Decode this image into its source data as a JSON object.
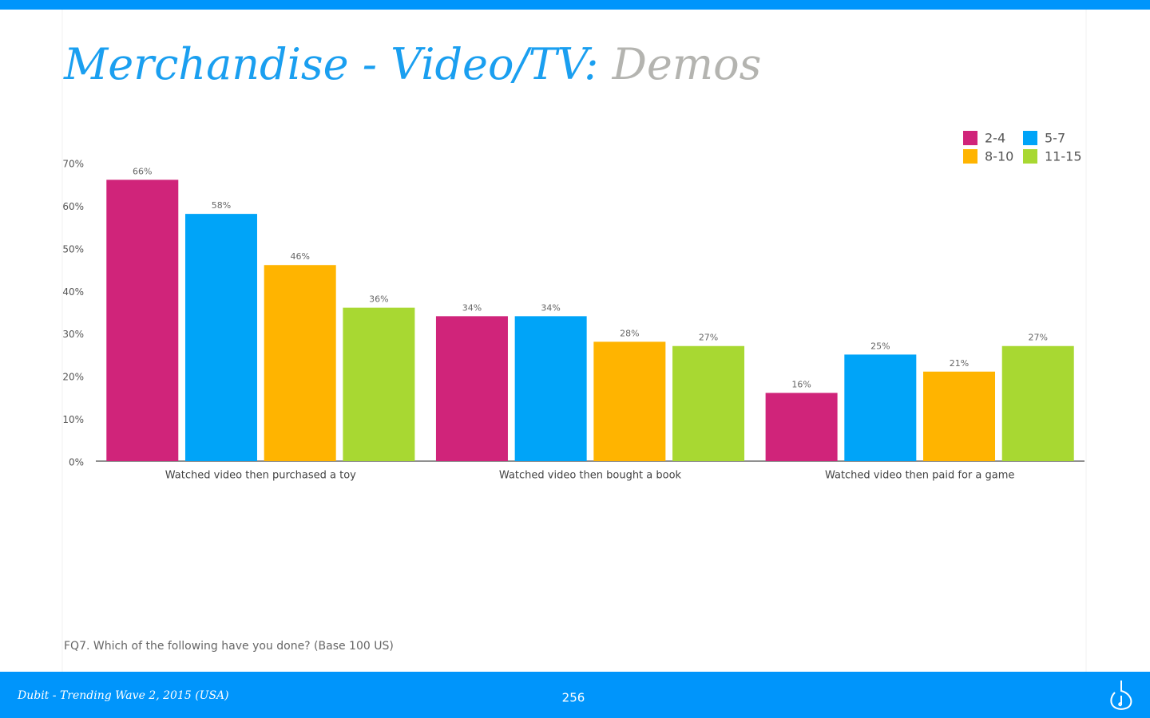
{
  "header": {
    "title": "Merchandise - Video/TV:",
    "subtitle": "Demos"
  },
  "chart_data": {
    "type": "bar",
    "categories": [
      "Watched video then purchased a toy",
      "Watched video then bought a book",
      "Watched video then paid for a game"
    ],
    "series": [
      {
        "name": "2-4",
        "color": "#d0247a",
        "values": [
          66,
          34,
          16
        ],
        "value_labels": [
          "66%",
          "34%",
          "16%"
        ]
      },
      {
        "name": "5-7",
        "color": "#00a4f8",
        "values": [
          58,
          34,
          25
        ],
        "value_labels": [
          "58%",
          "34%",
          "25%"
        ]
      },
      {
        "name": "8-10",
        "color": "#ffb400",
        "values": [
          46,
          28,
          21
        ],
        "value_labels": [
          "46%",
          "28%",
          "21%"
        ]
      },
      {
        "name": "11-15",
        "color": "#a8d832",
        "values": [
          36,
          27,
          27
        ],
        "value_labels": [
          "36%",
          "27%",
          "27%"
        ]
      }
    ],
    "ylim": [
      0,
      70
    ],
    "yticks": [
      {
        "value": 0,
        "label": "0%"
      },
      {
        "value": 10,
        "label": "10%"
      },
      {
        "value": 20,
        "label": "20%"
      },
      {
        "value": 30,
        "label": "30%"
      },
      {
        "value": 40,
        "label": "40%"
      },
      {
        "value": 50,
        "label": "50%"
      },
      {
        "value": 60,
        "label": "60%"
      },
      {
        "value": 70,
        "label": "70%"
      }
    ],
    "grid": false,
    "legend": "top-right"
  },
  "note": "FQ7. Which of the following have you done? (Base 100 US)",
  "footer": {
    "source": "Dubit - Trending Wave 2, 2015 (USA)",
    "page": "256"
  }
}
